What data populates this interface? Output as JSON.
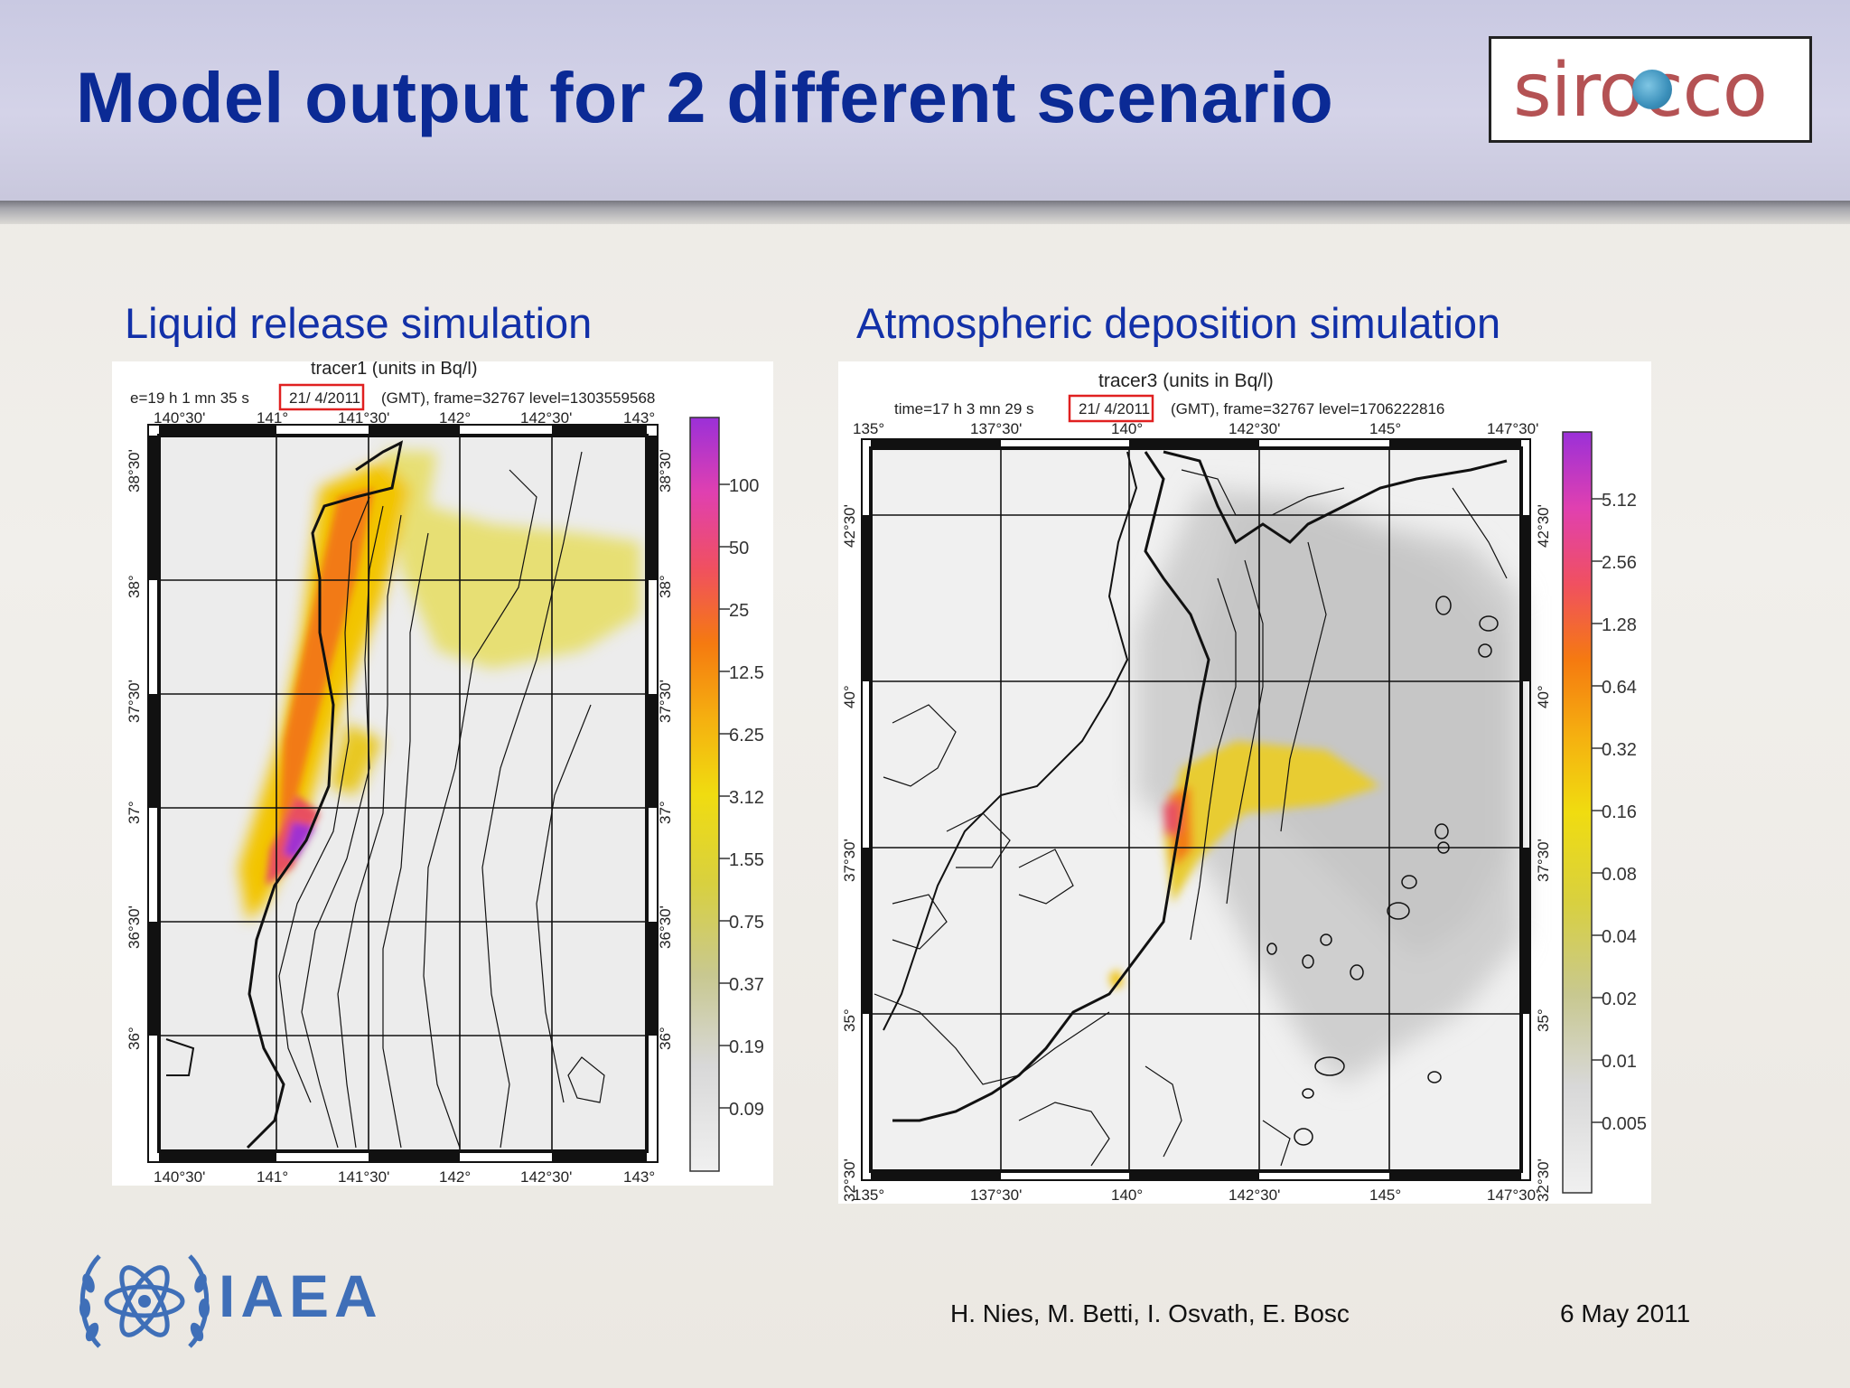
{
  "slide": {
    "title": "Model output for 2 different scenario",
    "logo_text": "sirocco",
    "left_subtitle": "Liquid release simulation",
    "right_subtitle": "Atmospheric deposition simulation",
    "footer_authors": "H. Nies, M. Betti, I. Osvath, E. Bosc",
    "footer_date": "6 May 2011",
    "org_logo_text": "IAEA"
  },
  "colors": {
    "title": "#0b2a95",
    "subtitle": "#1230a8",
    "header_band": "#d0cfe6",
    "highlight_box": "#e02020"
  },
  "left_map": {
    "title": "tracer1 (units in Bq/l)",
    "time_prefix": "e=19 h  1 mn 35 s",
    "date": "21/ 4/2011",
    "time_suffix": "(GMT), frame=32767 level=1303559568",
    "lon_labels": [
      "140°30'",
      "141°",
      "141°30'",
      "142°",
      "142°30'",
      "143°"
    ],
    "lat_labels": [
      "38°30'",
      "38°",
      "37°30'",
      "37°",
      "36°30'",
      "36°"
    ],
    "scale_labels": [
      "100",
      "50",
      "25",
      "12.5",
      "6.25",
      "3.12",
      "1.55",
      "0.75",
      "0.37",
      "0.19",
      "0.09"
    ]
  },
  "right_map": {
    "title": "tracer3 (units in Bq/l)",
    "time_prefix": "time=17 h  3 mn 29 s",
    "date": "21/ 4/2011",
    "time_suffix": "(GMT), frame=32767 level=1706222816",
    "lon_labels": [
      "135°",
      "137°30'",
      "140°",
      "142°30'",
      "145°",
      "147°30'"
    ],
    "lat_labels": [
      "42°30'",
      "40°",
      "37°30'",
      "35°",
      "32°30'"
    ],
    "scale_labels": [
      "5.12",
      "2.56",
      "1.28",
      "0.64",
      "0.32",
      "0.16",
      "0.08",
      "0.04",
      "0.02",
      "0.01",
      "0.005"
    ]
  }
}
